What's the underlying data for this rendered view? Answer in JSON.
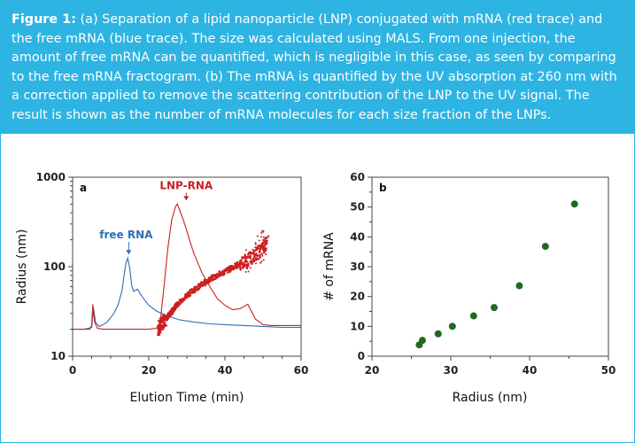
{
  "caption": {
    "lead": "Figure 1:",
    "body": " (a) Separation of a lipid nanoparticle (LNP) conjugated with mRNA (red trace) and the free mRNA (blue trace). The size was calculated using MALS. From one injection, the amount of free mRNA can be quantified, which is negligible in this case, as seen by comparing to the free mRNA fractogram. (b) The mRNA is quantified by the UV absorption at 260 nm with a correction applied to remove the scattering contribution of the LNP to the UV signal. The result is shown as the number of mRNA molecules for each size fraction of the LNPs."
  },
  "colors": {
    "accent": "#2db4e3",
    "red": "#cc1f1f",
    "blue": "#2f6db5",
    "green": "#1e6b1e"
  },
  "chart_data": [
    {
      "type": "line",
      "panel_label": "a",
      "xlabel": "Elution Time (min)",
      "ylabel": "Radius (nm)",
      "xlim": [
        0,
        60
      ],
      "ylim": [
        10,
        1000
      ],
      "yscale": "log",
      "x_ticks": [
        "0",
        "20",
        "40",
        "60"
      ],
      "y_ticks": [
        "10",
        "100",
        "1000"
      ],
      "annotations": [
        {
          "text": "free RNA",
          "series": "free RNA",
          "points_to": [
            14.5,
            125
          ]
        },
        {
          "text": "LNP-RNA",
          "series": "LNP-RNA",
          "points_to": [
            27.5,
            500
          ]
        }
      ],
      "series": [
        {
          "name": "free RNA",
          "color": "#2f6db5",
          "x": [
            0,
            3,
            5,
            5.5,
            6,
            7,
            8,
            9,
            10,
            11,
            12,
            13,
            13.5,
            14,
            14.5,
            15,
            15.5,
            16,
            17,
            18,
            19,
            20,
            22,
            25,
            28,
            32,
            36,
            40,
            45,
            50,
            55,
            60
          ],
          "y": [
            20,
            20,
            21,
            34,
            24,
            21.5,
            22.5,
            24,
            27,
            31,
            38,
            55,
            80,
            110,
            125,
            95,
            62,
            53,
            56,
            48,
            42,
            37,
            32,
            28,
            25.5,
            24,
            23,
            22.5,
            22,
            21.5,
            21,
            21
          ]
        },
        {
          "name": "LNP-RNA",
          "color": "#cc1f1f",
          "x": [
            0,
            4.5,
            5,
            5.3,
            5.8,
            6.5,
            8,
            12,
            16,
            20,
            22,
            23,
            24,
            25,
            26,
            27,
            27.5,
            28,
            29,
            30,
            31,
            32,
            34,
            36,
            38,
            40,
            42,
            44,
            45,
            46,
            48,
            50,
            52,
            55,
            60
          ],
          "y": [
            20,
            20,
            22,
            38,
            24,
            20.5,
            20,
            20,
            20,
            20,
            20.5,
            24,
            60,
            160,
            330,
            470,
            500,
            440,
            340,
            250,
            180,
            135,
            85,
            60,
            44,
            37,
            33,
            34,
            36,
            38,
            26,
            22.5,
            22,
            22,
            22
          ]
        },
        {
          "name": "LNP-RNA radius",
          "color": "#cc1f1f",
          "x": [
            22.5,
            23,
            24,
            25,
            26,
            27,
            28,
            30,
            32,
            34,
            36,
            38,
            40,
            42,
            44,
            46,
            48,
            50,
            51
          ],
          "y": [
            20,
            22,
            25,
            28,
            31,
            36,
            40,
            48,
            56,
            63,
            72,
            80,
            88,
            98,
            108,
            118,
            135,
            160,
            185
          ]
        }
      ]
    },
    {
      "type": "scatter",
      "panel_label": "b",
      "xlabel": "Radius (nm)",
      "ylabel": "# of mRNA",
      "xlim": [
        20,
        50
      ],
      "ylim": [
        0,
        60
      ],
      "x_ticks": [
        "20",
        "30",
        "40",
        "50"
      ],
      "y_ticks": [
        "0",
        "10",
        "20",
        "30",
        "40",
        "50",
        "60"
      ],
      "series": [
        {
          "name": "mRNA count",
          "color": "#1e6b1e",
          "x": [
            26.0,
            26.4,
            28.4,
            30.2,
            32.9,
            35.5,
            38.7,
            42.0,
            45.7
          ],
          "y": [
            3.8,
            5.3,
            7.5,
            10.0,
            13.5,
            16.3,
            23.6,
            36.8,
            51.0
          ]
        }
      ]
    }
  ]
}
